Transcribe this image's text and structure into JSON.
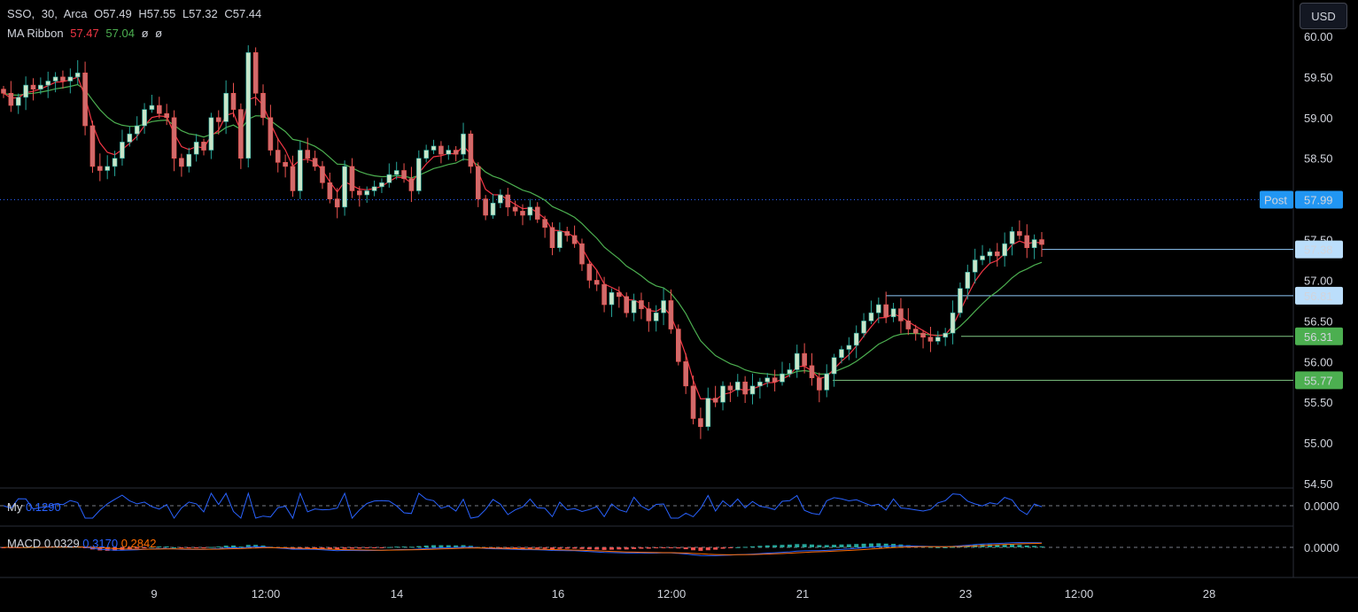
{
  "header": {
    "symbol": "SSO",
    "interval": "30",
    "exchange": "Arca",
    "open_label": "O",
    "open": "57.49",
    "high_label": "H",
    "high": "57.55",
    "low_label": "L",
    "low": "57.32",
    "close_label": "C",
    "close": "57.44",
    "ribbon_label": "MA Ribbon",
    "ribbon_fast": "57.47",
    "ribbon_slow": "57.04",
    "ribbon_extra1": "ø",
    "ribbon_extra2": "ø"
  },
  "currency_button": "USD",
  "indicators": {
    "my_label": "My",
    "my_value": "0.1290",
    "macd_label": "MACD",
    "macd_hist": "0.0329",
    "macd_line": "0.3170",
    "macd_signal": "0.2842",
    "zero_label_1": "0.0000",
    "zero_label_2": "0.0000"
  },
  "colors": {
    "up": "#26a69a",
    "up_candle_fill": "#c8e6c9",
    "down": "#ef5350",
    "down_candle_fill": "#d16b6b",
    "ma_fast": "#f23645",
    "ma_slow": "#4caf50",
    "blue_line": "#2962ff",
    "orange_line": "#ff6d00",
    "post_badge": "#2196f3"
  },
  "chart_data": {
    "type": "candlestick",
    "y_ticks": [
      "60.00",
      "59.50",
      "59.00",
      "58.50",
      "58.00",
      "57.50",
      "57.00",
      "56.50",
      "56.00",
      "55.50",
      "55.00",
      "54.50"
    ],
    "ylim": [
      54.5,
      60.0
    ],
    "x_ticks": [
      "9",
      "12:00",
      "14",
      "16",
      "12:00",
      "21",
      "23",
      "12:00",
      "28"
    ],
    "post_label": "Post",
    "post_price": "57.99",
    "price_badges": [
      {
        "value": "57.38",
        "kind": "last"
      },
      {
        "value": "56.81",
        "kind": "blue"
      },
      {
        "value": "56.31",
        "kind": "green"
      },
      {
        "value": "55.77",
        "kind": "green"
      }
    ],
    "close_series": [
      59.3,
      59.15,
      59.25,
      59.4,
      59.35,
      59.4,
      59.45,
      59.5,
      59.45,
      59.5,
      59.55,
      58.9,
      58.4,
      58.35,
      58.4,
      58.5,
      58.7,
      58.8,
      58.9,
      59.1,
      59.15,
      59.05,
      59.0,
      58.5,
      58.4,
      58.55,
      58.7,
      58.6,
      59.0,
      58.95,
      59.3,
      59.1,
      58.5,
      59.8,
      59.3,
      59.0,
      58.6,
      58.45,
      58.4,
      58.1,
      58.6,
      58.5,
      58.4,
      58.2,
      58.0,
      57.9,
      58.4,
      58.1,
      58.05,
      58.1,
      58.15,
      58.2,
      58.3,
      58.35,
      58.25,
      58.1,
      58.5,
      58.6,
      58.65,
      58.55,
      58.6,
      58.55,
      58.8,
      58.4,
      58.0,
      57.8,
      57.95,
      58.05,
      57.9,
      57.85,
      57.8,
      57.9,
      57.75,
      57.65,
      57.4,
      57.6,
      57.55,
      57.45,
      57.2,
      57.0,
      56.95,
      56.7,
      56.85,
      56.8,
      56.6,
      56.75,
      56.65,
      56.5,
      56.6,
      56.75,
      56.4,
      56.0,
      55.7,
      55.3,
      55.2,
      55.55,
      55.5,
      55.7,
      55.65,
      55.75,
      55.6,
      55.7,
      55.75,
      55.8,
      55.75,
      55.85,
      55.9,
      56.1,
      55.95,
      55.8,
      55.65,
      55.85,
      56.05,
      56.15,
      56.2,
      56.35,
      56.5,
      56.6,
      56.7,
      56.55,
      56.65,
      56.5,
      56.4,
      56.35,
      56.3,
      56.25,
      56.3,
      56.35,
      56.6,
      56.9,
      57.1,
      57.25,
      57.3,
      57.35,
      57.3,
      57.45,
      57.6,
      57.55,
      57.4,
      57.5,
      57.44
    ],
    "ma_fast_last": 57.47,
    "ma_slow_last": 57.04
  }
}
